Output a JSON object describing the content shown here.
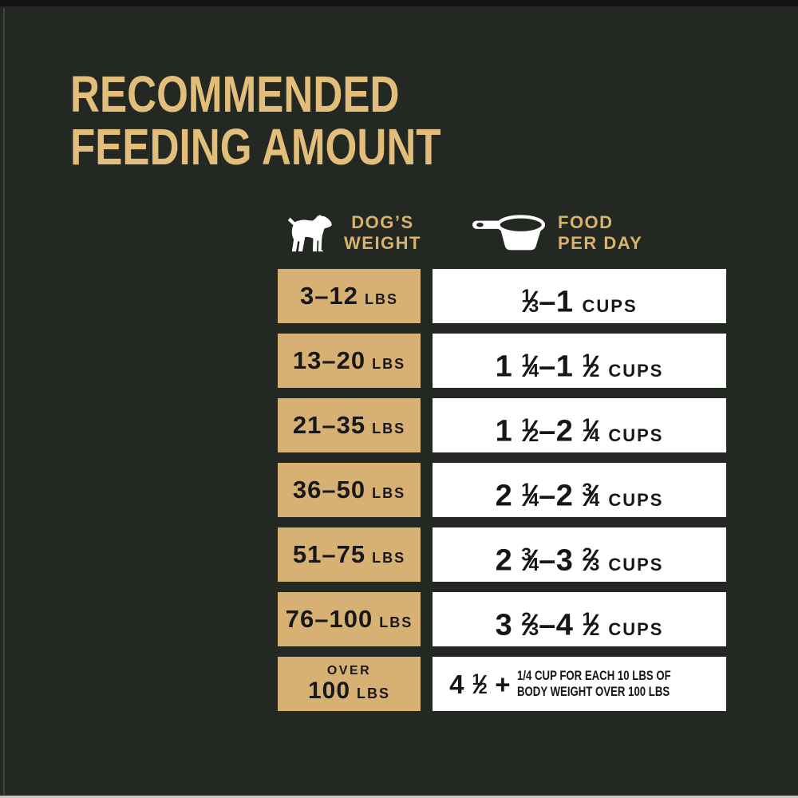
{
  "page": {
    "title_lines": [
      "RECOMMENDED",
      "FEEDING AMOUNT"
    ]
  },
  "colors": {
    "background": "#232822",
    "title_gold": "#e3bd7a",
    "header_label_gold": "#d9b26c",
    "weight_cell_tan": "#d6b173",
    "amount_cell_white": "#ffffff",
    "text_dark": "#161616",
    "icon_white": "#ffffff"
  },
  "header": {
    "weight": {
      "icon": "dog-icon",
      "label_lines": [
        "DOG’S",
        "WEIGHT"
      ]
    },
    "food": {
      "icon": "measuring-cup-icon",
      "label_lines": [
        "FOOD",
        "PER DAY"
      ]
    }
  },
  "table": {
    "rows": [
      {
        "weight": "3–12",
        "weight_unit": "LBS",
        "amount": "1/3–1",
        "amount_unit": "CUPS"
      },
      {
        "weight": "13–20",
        "weight_unit": "LBS",
        "amount": "1 1/4–1 1/2",
        "amount_unit": "CUPS"
      },
      {
        "weight": "21–35",
        "weight_unit": "LBS",
        "amount": "1 1/2–2 1/4",
        "amount_unit": "CUPS"
      },
      {
        "weight": "36–50",
        "weight_unit": "LBS",
        "amount": "2 1/4–2 3/4",
        "amount_unit": "CUPS"
      },
      {
        "weight": "51–75",
        "weight_unit": "LBS",
        "amount": "2 3/4–3 2/3",
        "amount_unit": "CUPS"
      },
      {
        "weight": "76–100",
        "weight_unit": "LBS",
        "amount": "3 2/3–4 1/2",
        "amount_unit": "CUPS"
      },
      {
        "weight_prefix": "OVER",
        "weight": "100",
        "weight_unit": "LBS",
        "amount": "4 1/2 +",
        "note_lines": [
          "1/4 CUP FOR EACH 10 LBS OF",
          "BODY WEIGHT OVER 100 LBS"
        ]
      }
    ]
  },
  "chart_data": {
    "type": "table",
    "title": "RECOMMENDED FEEDING AMOUNT",
    "columns": [
      "DOG'S WEIGHT",
      "FOOD PER DAY"
    ],
    "rows": [
      [
        "3–12 LBS",
        "1/3–1 CUPS"
      ],
      [
        "13–20 LBS",
        "1 1/4–1 1/2 CUPS"
      ],
      [
        "21–35 LBS",
        "1 1/2–2 1/4 CUPS"
      ],
      [
        "36–50 LBS",
        "2 1/4–2 3/4 CUPS"
      ],
      [
        "51–75 LBS",
        "2 3/4–3 2/3 CUPS"
      ],
      [
        "76–100 LBS",
        "3 2/3–4 1/2 CUPS"
      ],
      [
        "OVER 100 LBS",
        "4 1/2 + 1/4 CUP FOR EACH 10 LBS OF BODY WEIGHT OVER 100 LBS"
      ]
    ]
  }
}
